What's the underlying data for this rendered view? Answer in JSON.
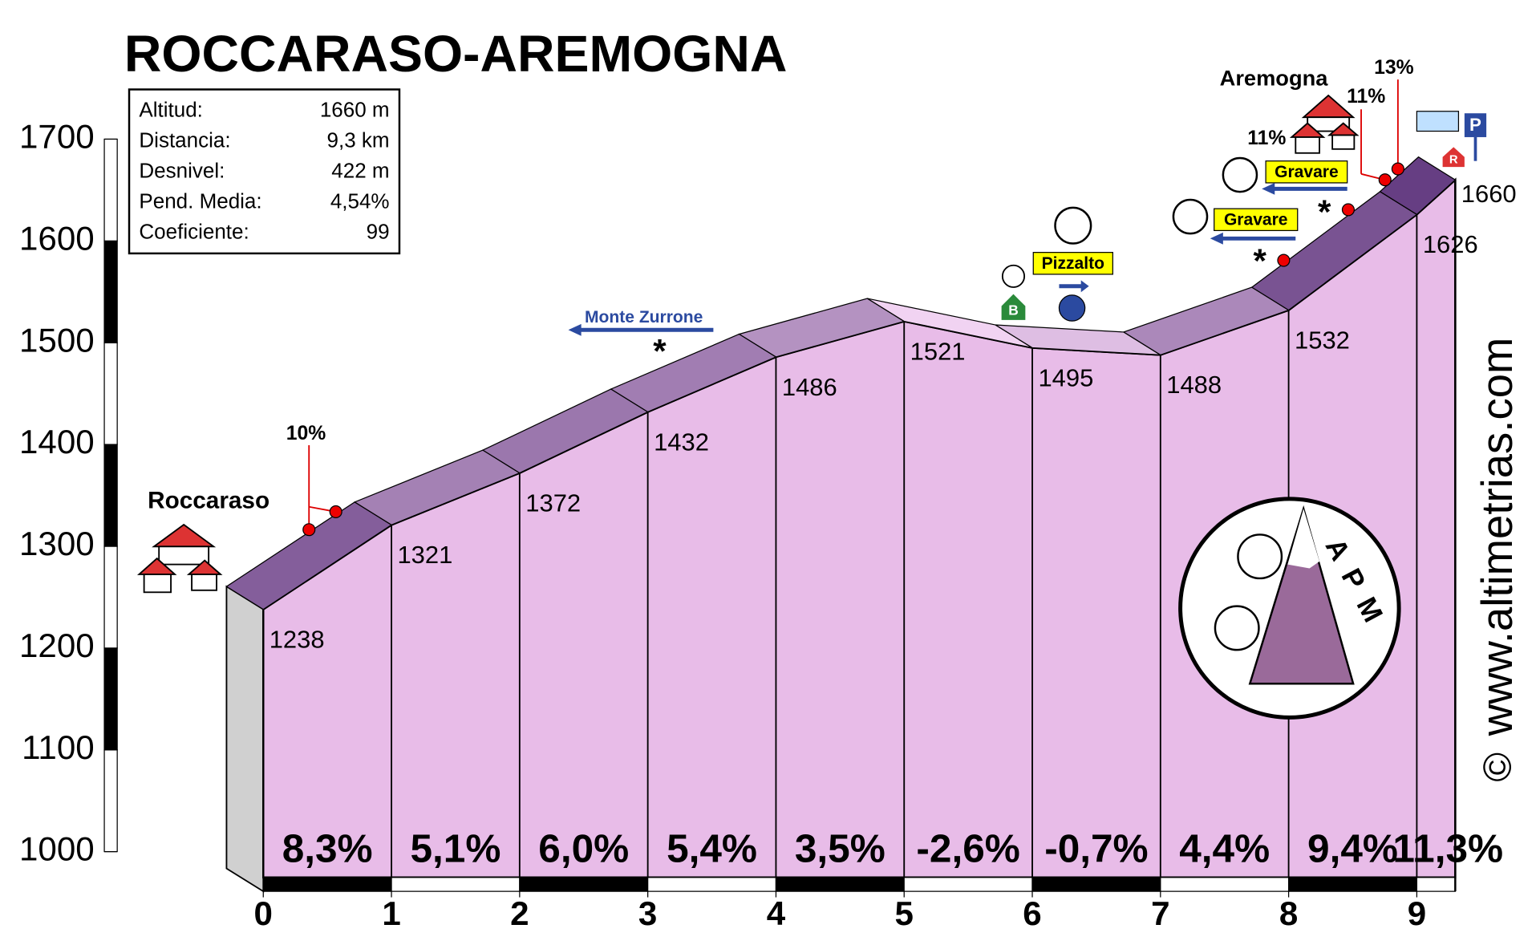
{
  "chart_data": {
    "type": "elevation-profile",
    "title": "ROCCARASO-AREMOGNA",
    "info_box": [
      [
        "Altitud:",
        "1660 m"
      ],
      [
        "Distancia:",
        "9,3 km"
      ],
      [
        "Desnivel:",
        "422 m"
      ],
      [
        "Pend. Media:",
        "4,54%"
      ],
      [
        "Coeficiente:",
        "99"
      ]
    ],
    "x": [
      0,
      1,
      2,
      3,
      4,
      5,
      6,
      7,
      8,
      9,
      9.3
    ],
    "values": [
      1238,
      1321,
      1372,
      1432,
      1486,
      1521,
      1495,
      1488,
      1532,
      1626,
      1660
    ],
    "segment_gradients": {
      "values": [
        8.3,
        5.1,
        6.0,
        5.4,
        3.5,
        -2.6,
        -0.7,
        4.4,
        9.4,
        11.3
      ],
      "value_labels": [
        "8,3%",
        "5,1%",
        "6,0%",
        "5,4%",
        "3,5%",
        "-2,6%",
        "-0,7%",
        "4,4%",
        "9,4%",
        "11,3%"
      ]
    },
    "xlim": [
      0,
      9.3
    ],
    "xticks": [
      0,
      1,
      2,
      3,
      4,
      5,
      6,
      7,
      8,
      9
    ],
    "ylim": [
      1000,
      1700
    ],
    "yticks": [
      1000,
      1100,
      1200,
      1300,
      1400,
      1500,
      1600,
      1700
    ],
    "color": "#e8bce8",
    "annotations": [
      "Roccaraso",
      "Aremogna",
      "Monte Zurrone",
      "Pizzalto",
      "Gravare",
      "Gravare",
      "10%",
      "11%",
      "11%",
      "13%",
      "*",
      "B",
      "P",
      "R"
    ],
    "logo_text": "APM",
    "watermark": "www.altimetrias.com",
    "copyright": "©"
  }
}
